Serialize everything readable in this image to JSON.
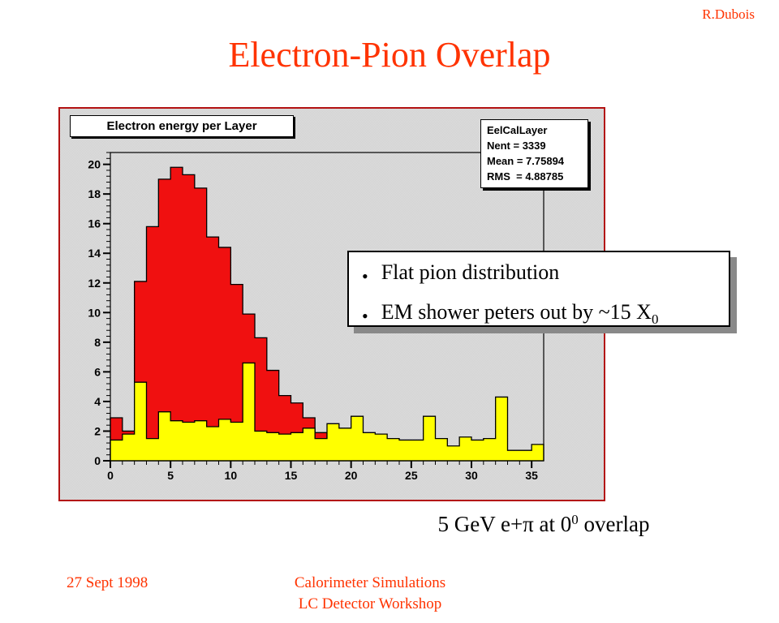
{
  "slide": {
    "author": "R.Dubois",
    "title": "Electron-Pion Overlap",
    "caption": {
      "pre": "5 GeV e+π at 0",
      "sup": "0",
      "post": " overlap"
    },
    "footer": {
      "date": "27 Sept 1998",
      "venue_line1": "Calorimeter Simulations",
      "venue_line2": "LC Detector Workshop"
    }
  },
  "plot": {
    "header": "Electron energy per Layer",
    "stats": {
      "name": "EelCalLayer",
      "entries": "Nent = 3339",
      "mean": "Mean = 7.75894",
      "rms": "RMS  = 4.88785"
    }
  },
  "callout": {
    "items": [
      {
        "bullet": "•",
        "text": "Flat pion distribution",
        "sub": ""
      },
      {
        "bullet": "•",
        "text": "EM shower peters out by ~15 X",
        "sub": "0"
      }
    ]
  },
  "colors": {
    "accent_text": "#ff3300",
    "panel_border": "#b31212",
    "panel_bg": "#d7d7d7",
    "electron_red": "#f01010",
    "pion_yellow": "#ffff00",
    "outline": "#000000",
    "shadow_grey": "#898989"
  },
  "chart_data": {
    "type": "bar",
    "title": "Electron energy per Layer",
    "xlabel": "",
    "ylabel": "",
    "xlim": [
      0,
      36
    ],
    "ylim": [
      0,
      20.8
    ],
    "bin_width": 1,
    "xticks": [
      0,
      5,
      10,
      15,
      20,
      25,
      30,
      35
    ],
    "yticks": [
      0,
      2,
      4,
      6,
      8,
      10,
      12,
      14,
      16,
      18,
      20
    ],
    "x_minor_step": 1,
    "y_minor_step": 0.4,
    "grid": false,
    "legend": "none",
    "series": [
      {
        "name": "electron energy per layer (red, drawn first)",
        "color": "#f01010",
        "values": [
          2.9,
          2.0,
          12.1,
          15.8,
          19.0,
          19.8,
          19.3,
          18.4,
          15.1,
          14.4,
          11.9,
          9.9,
          8.3,
          6.1,
          4.4,
          3.9,
          2.9,
          1.9,
          1.3,
          0.9,
          0.7,
          0.5,
          0.4,
          0.3,
          0.2,
          0.2,
          0.1,
          0.1,
          0.1,
          0.1,
          0.1,
          0,
          0,
          0,
          0,
          0
        ]
      },
      {
        "name": "flat pion distribution (yellow, drawn on top)",
        "color": "#ffff00",
        "values": [
          1.4,
          1.8,
          5.3,
          1.5,
          3.3,
          2.7,
          2.6,
          2.7,
          2.3,
          2.8,
          2.6,
          6.6,
          2.0,
          1.9,
          1.8,
          1.9,
          2.2,
          1.5,
          2.5,
          2.2,
          3.0,
          1.9,
          1.8,
          1.5,
          1.4,
          1.4,
          3.0,
          1.5,
          1.0,
          1.6,
          1.4,
          1.5,
          4.3,
          0.7,
          0.7,
          1.1
        ]
      }
    ],
    "stats_box": {
      "name": "EelCalLayer",
      "nent": 3339,
      "mean": 7.75894,
      "rms": 4.88785
    }
  }
}
